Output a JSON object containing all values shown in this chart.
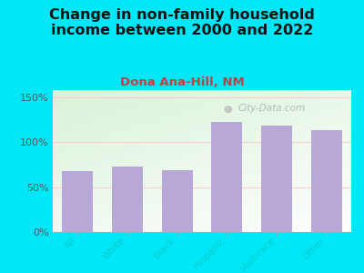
{
  "title": "Change in non-family household\nincome between 2000 and 2022",
  "subtitle": "Dona Ana-Hill, NM",
  "categories": [
    "All",
    "White",
    "Black",
    "Hispanic",
    "Multirace",
    "Other"
  ],
  "values": [
    68,
    73,
    69,
    123,
    118,
    113
  ],
  "bar_color": "#b8a8d8",
  "title_fontsize": 11.5,
  "subtitle_fontsize": 9.5,
  "subtitle_color": "#c04040",
  "title_color": "#111111",
  "bg_outer": "#00e8f8",
  "ylabel_ticks": [
    0,
    50,
    100,
    150
  ],
  "ylabel_labels": [
    "0%",
    "50%",
    "100%",
    "150%"
  ],
  "ylim": [
    0,
    158
  ],
  "watermark": "City-Data.com"
}
